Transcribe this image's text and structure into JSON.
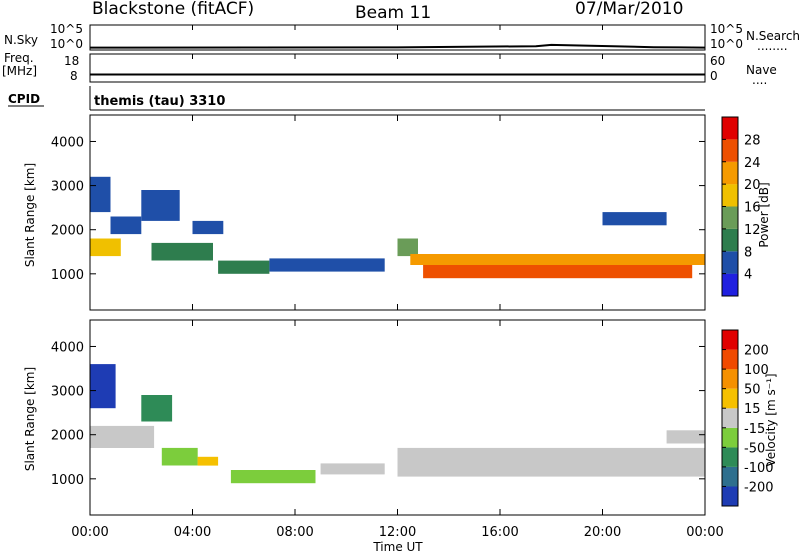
{
  "header": {
    "station": "Blackstone (fitACF)",
    "beam": "Beam 11",
    "date": "07/Mar/2010"
  },
  "strips": {
    "nsky_label": "N.Sky",
    "nsearch_label": "N.Search",
    "nsearch_dots": "........",
    "count_ticks_left": [
      "10^5",
      "10^0"
    ],
    "count_ticks_right": [
      "10^5",
      "10^0"
    ],
    "freq_label_top": "Freq.",
    "freq_label_bottom": "[MHz]",
    "freq_ticks": [
      "18",
      "8"
    ],
    "nave_label": "Nave",
    "nave_dots": "....",
    "nave_ticks": [
      "60",
      "0"
    ],
    "cpid_label": "CPID",
    "cpid_value": "themis (tau) 3310"
  },
  "axes": {
    "xlabel": "Time UT",
    "x_ticks": [
      "00:00",
      "04:00",
      "08:00",
      "12:00",
      "16:00",
      "20:00",
      "00:00"
    ],
    "ylabel": "Slant Range [km]",
    "y_ticks": [
      "4000",
      "3000",
      "2000",
      "1000"
    ]
  },
  "colorbars": {
    "power": {
      "label": "Power [dB]",
      "ticks": [
        "28",
        "24",
        "20",
        "16",
        "12",
        "8",
        "4"
      ],
      "colors": [
        "#2020e0",
        "#1f4fa8",
        "#2e7d4e",
        "#6a9c58",
        "#f0c000",
        "#f59a00",
        "#ee5000",
        "#e00000"
      ]
    },
    "velocity": {
      "label": "Velocity [m s⁻¹]",
      "ticks": [
        "200",
        "100",
        "50",
        "15",
        "-15",
        "-50",
        "-100",
        "-200"
      ],
      "colors": [
        "#1e3cb4",
        "#2e6f8e",
        "#2e8b57",
        "#7ccd3c",
        "#c8c8c8",
        "#f5c000",
        "#f59000",
        "#f04a00",
        "#e00000"
      ]
    }
  },
  "chart_data": [
    {
      "type": "line",
      "title": "N.Sky / N.Search",
      "x": [
        0,
        1,
        12,
        17.4,
        18,
        22,
        23,
        24
      ],
      "y_log10": [
        0.3,
        0.3,
        0.35,
        0.6,
        0.9,
        0.4,
        0.35,
        0.3
      ],
      "ylim_log10": [
        0,
        5
      ]
    },
    {
      "type": "line",
      "title": "Freq. [MHz] / Nave",
      "x": [
        0,
        12,
        24
      ],
      "freq_mhz": [
        10.5,
        10.5,
        10.5
      ],
      "ylim": [
        8,
        18
      ]
    },
    {
      "type": "heatmap",
      "title": "Power [dB]",
      "xlim_hours": [
        0,
        24
      ],
      "ylim_km": [
        180,
        4600
      ],
      "clim": [
        0,
        32
      ],
      "regions": [
        {
          "t": [
            0.0,
            1.2
          ],
          "r": [
            1400,
            1800
          ],
          "v": 16
        },
        {
          "t": [
            0.0,
            0.8
          ],
          "r": [
            2400,
            3200
          ],
          "v": 4
        },
        {
          "t": [
            0.8,
            2.0
          ],
          "r": [
            1900,
            2300
          ],
          "v": 6
        },
        {
          "t": [
            2.0,
            3.5
          ],
          "r": [
            2200,
            2900
          ],
          "v": 5
        },
        {
          "t": [
            2.4,
            4.8
          ],
          "r": [
            1300,
            1700
          ],
          "v": 8
        },
        {
          "t": [
            4.0,
            5.2
          ],
          "r": [
            1900,
            2200
          ],
          "v": 5
        },
        {
          "t": [
            5.0,
            7.0
          ],
          "r": [
            1000,
            1300
          ],
          "v": 9
        },
        {
          "t": [
            7.0,
            11.5
          ],
          "r": [
            1050,
            1350
          ],
          "v": 7
        },
        {
          "t": [
            12.0,
            12.8
          ],
          "r": [
            1400,
            1800
          ],
          "v": 12
        },
        {
          "t": [
            12.5,
            24.0
          ],
          "r": [
            1200,
            1450
          ],
          "v": 22
        },
        {
          "t": [
            13.0,
            23.5
          ],
          "r": [
            900,
            1200
          ],
          "v": 27
        },
        {
          "t": [
            20.0,
            22.5
          ],
          "r": [
            2100,
            2400
          ],
          "v": 5
        }
      ]
    },
    {
      "type": "heatmap",
      "title": "Velocity [m s-1]",
      "xlim_hours": [
        0,
        24
      ],
      "ylim_km": [
        180,
        4600
      ],
      "clim": [
        -250,
        250
      ],
      "regions": [
        {
          "t": [
            0.0,
            1.0
          ],
          "r": [
            2600,
            3600
          ],
          "v": -200
        },
        {
          "t": [
            0.0,
            2.5
          ],
          "r": [
            1700,
            2200
          ],
          "v": 0
        },
        {
          "t": [
            2.0,
            3.2
          ],
          "r": [
            2300,
            2900
          ],
          "v": -120
        },
        {
          "t": [
            2.8,
            4.2
          ],
          "r": [
            1300,
            1700
          ],
          "v": -80
        },
        {
          "t": [
            4.2,
            5.0
          ],
          "r": [
            1300,
            1500
          ],
          "v": 60
        },
        {
          "t": [
            5.5,
            8.8
          ],
          "r": [
            900,
            1200
          ],
          "v": -70
        },
        {
          "t": [
            9.0,
            11.5
          ],
          "r": [
            1100,
            1350
          ],
          "v": 0
        },
        {
          "t": [
            12.0,
            24.0
          ],
          "r": [
            1050,
            1700
          ],
          "v": 0
        },
        {
          "t": [
            22.5,
            24.0
          ],
          "r": [
            1800,
            2100
          ],
          "v": 0
        }
      ]
    }
  ]
}
